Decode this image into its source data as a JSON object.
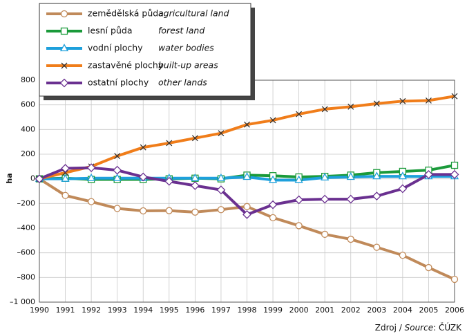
{
  "chart_data": {
    "type": "line",
    "ylabel": "ha",
    "categories": [
      "1990",
      "1991",
      "1992",
      "1993",
      "1994",
      "1995",
      "1996",
      "1997",
      "1998",
      "1999",
      "2000",
      "2001",
      "2002",
      "2003",
      "2004",
      "2005",
      "2006"
    ],
    "series": [
      {
        "name": "zemědělská půda",
        "name_en": "agricultural land",
        "color": "#c08a5a",
        "marker": "circle",
        "values": [
          0,
          -135,
          -185,
          -240,
          -260,
          -258,
          -270,
          -250,
          -225,
          -315,
          -380,
          -450,
          -490,
          -555,
          -620,
          -720,
          -815
        ]
      },
      {
        "name": "lesní půda",
        "name_en": "forest land",
        "color": "#1a9a3a",
        "marker": "square",
        "values": [
          0,
          5,
          -5,
          -5,
          -5,
          0,
          5,
          0,
          30,
          25,
          15,
          20,
          30,
          50,
          60,
          70,
          110
        ]
      },
      {
        "name": "vodní plochy",
        "name_en": "water bodies",
        "color": "#1ea0dc",
        "marker": "triangle",
        "values": [
          0,
          0,
          5,
          5,
          5,
          5,
          5,
          5,
          15,
          -10,
          -10,
          10,
          15,
          20,
          20,
          20,
          20
        ]
      },
      {
        "name": "zastavěné plochy",
        "name_en": "built-up areas",
        "color": "#f07d1a",
        "marker": "x",
        "values": [
          0,
          50,
          100,
          185,
          255,
          290,
          330,
          370,
          440,
          475,
          525,
          565,
          585,
          610,
          630,
          635,
          670
        ]
      },
      {
        "name": "ostatní plochy",
        "name_en": "other lands",
        "color": "#6a3090",
        "marker": "diamond",
        "values": [
          0,
          85,
          90,
          70,
          15,
          -20,
          -55,
          -90,
          -290,
          -210,
          -170,
          -165,
          -165,
          -140,
          -80,
          35,
          35
        ]
      }
    ],
    "ylim": [
      -1000,
      800
    ],
    "yticks": [
      {
        "value": -1000,
        "label": "–1 000"
      },
      {
        "value": -800,
        "label": "–800"
      },
      {
        "value": -600,
        "label": "–600"
      },
      {
        "value": -400,
        "label": "–400"
      },
      {
        "value": -200,
        "label": "–200"
      },
      0,
      200,
      400,
      600,
      800
    ],
    "grid": true,
    "legend": "top-left",
    "source": [
      "Zdroj / ",
      "Source",
      ": ČÚZK"
    ]
  }
}
